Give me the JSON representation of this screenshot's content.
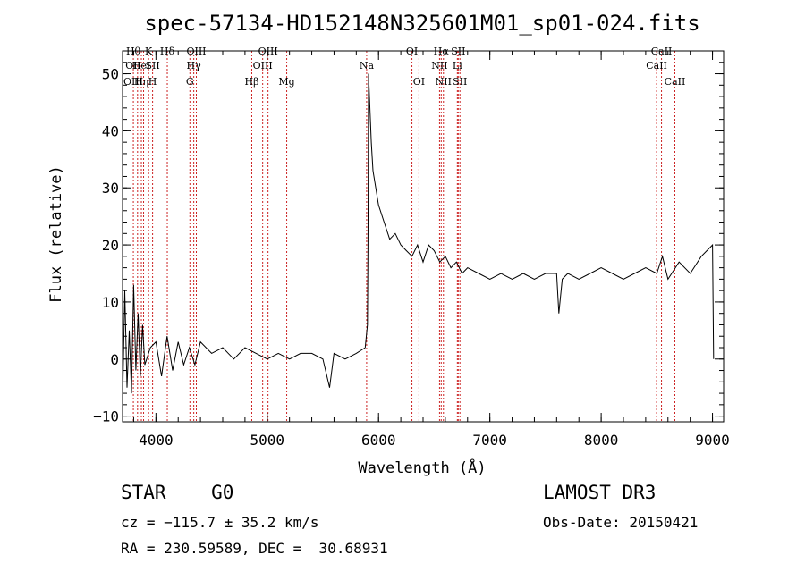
{
  "chart_data": {
    "type": "line",
    "title": "spec-57134-HD152148N325601M01_sp01-024.fits",
    "xlabel": "Wavelength (Å)",
    "ylabel": "Flux (relative)",
    "xlim": [
      3700,
      9100
    ],
    "ylim": [
      -11,
      54
    ],
    "xticks": [
      4000,
      5000,
      6000,
      7000,
      8000,
      9000
    ],
    "yticks": [
      -10,
      0,
      10,
      20,
      30,
      40,
      50
    ],
    "grid": false,
    "series": [
      {
        "color": "#000000",
        "x": [
          3700,
          3720,
          3740,
          3760,
          3780,
          3800,
          3820,
          3840,
          3860,
          3880,
          3900,
          3950,
          4000,
          4050,
          4100,
          4150,
          4200,
          4250,
          4300,
          4350,
          4400,
          4500,
          4600,
          4700,
          4800,
          4900,
          5000,
          5100,
          5200,
          5300,
          5400,
          5500,
          5560,
          5600,
          5700,
          5800,
          5880,
          5900,
          5905,
          5910,
          5920,
          5935,
          5950,
          5975,
          6000,
          6050,
          6100,
          6150,
          6200,
          6250,
          6300,
          6350,
          6400,
          6450,
          6500,
          6550,
          6600,
          6650,
          6700,
          6750,
          6800,
          6900,
          7000,
          7100,
          7200,
          7300,
          7400,
          7500,
          7600,
          7620,
          7650,
          7700,
          7800,
          7900,
          8000,
          8100,
          8200,
          8300,
          8400,
          8500,
          8550,
          8600,
          8700,
          8800,
          8900,
          8950,
          9000,
          9010
        ],
        "y": [
          -8,
          12,
          -5,
          5,
          -6,
          13,
          -2,
          8,
          -3,
          6,
          -1,
          2,
          3,
          -3,
          4,
          -2,
          3,
          -1,
          2,
          -1,
          3,
          1,
          2,
          0,
          2,
          1,
          0,
          1,
          0,
          1,
          1,
          0,
          -5,
          1,
          0,
          1,
          2,
          6,
          20,
          50,
          45,
          38,
          33,
          30,
          27,
          24,
          21,
          22,
          20,
          19,
          18,
          20,
          17,
          20,
          19,
          17,
          18,
          16,
          17,
          15,
          16,
          15,
          14,
          15,
          14,
          15,
          14,
          15,
          15,
          8,
          14,
          15,
          14,
          15,
          16,
          15,
          14,
          15,
          16,
          15,
          18,
          14,
          17,
          15,
          18,
          19,
          20,
          0
        ]
      }
    ],
    "lines": [
      {
        "x": 3797,
        "labels": [
          "Hθ",
          "OII",
          "OIII"
        ]
      },
      {
        "x": 3835,
        "labels": [
          "",
          "",
          ""
        ]
      },
      {
        "x": 3869,
        "labels": [
          "",
          "HeI",
          "Hη"
        ]
      },
      {
        "x": 3889,
        "labels": [
          "",
          "",
          ""
        ]
      },
      {
        "x": 3934,
        "labels": [
          "K",
          "",
          ""
        ]
      },
      {
        "x": 3970,
        "labels": [
          "",
          "SII",
          "H"
        ]
      },
      {
        "x": 4102,
        "labels": [
          "Hδ",
          "",
          ""
        ]
      },
      {
        "x": 4305,
        "labels": [
          "",
          "",
          "G"
        ]
      },
      {
        "x": 4340,
        "labels": [
          "",
          "Hγ",
          ""
        ]
      },
      {
        "x": 4363,
        "labels": [
          "OIII",
          "",
          ""
        ]
      },
      {
        "x": 4861,
        "labels": [
          "",
          "",
          "Hβ"
        ]
      },
      {
        "x": 4959,
        "labels": [
          "",
          "OIII",
          ""
        ]
      },
      {
        "x": 5007,
        "labels": [
          "OIII",
          "",
          ""
        ]
      },
      {
        "x": 5175,
        "labels": [
          "",
          "",
          "Mg"
        ]
      },
      {
        "x": 5893,
        "labels": [
          "",
          "Na",
          ""
        ]
      },
      {
        "x": 6300,
        "labels": [
          "OI",
          "",
          ""
        ]
      },
      {
        "x": 6363,
        "labels": [
          "",
          "",
          "OI"
        ]
      },
      {
        "x": 6548,
        "labels": [
          "",
          "NII",
          ""
        ]
      },
      {
        "x": 6563,
        "labels": [
          "Hα",
          "",
          ""
        ]
      },
      {
        "x": 6583,
        "labels": [
          "",
          "",
          "NII"
        ]
      },
      {
        "x": 6708,
        "labels": [
          "",
          "Li",
          ""
        ]
      },
      {
        "x": 6716,
        "labels": [
          "SII",
          "",
          ""
        ]
      },
      {
        "x": 6731,
        "labels": [
          "",
          "",
          "SII"
        ]
      },
      {
        "x": 8498,
        "labels": [
          "",
          "CaII",
          ""
        ]
      },
      {
        "x": 8542,
        "labels": [
          "CaII",
          "",
          ""
        ]
      },
      {
        "x": 8662,
        "labels": [
          "",
          "",
          "CaII"
        ]
      }
    ]
  },
  "info": {
    "object_class": "STAR",
    "subclass": "G0",
    "survey": "LAMOST DR3",
    "cz": "cz = −115.7 ± 35.2 km/s",
    "obs_date": "Obs-Date: 20150421",
    "radec": "RA = 230.59589, DEC =  30.68931"
  },
  "colors": {
    "line_markers": "#cc2222",
    "spectrum": "#000000",
    "background": "#ffffff"
  }
}
